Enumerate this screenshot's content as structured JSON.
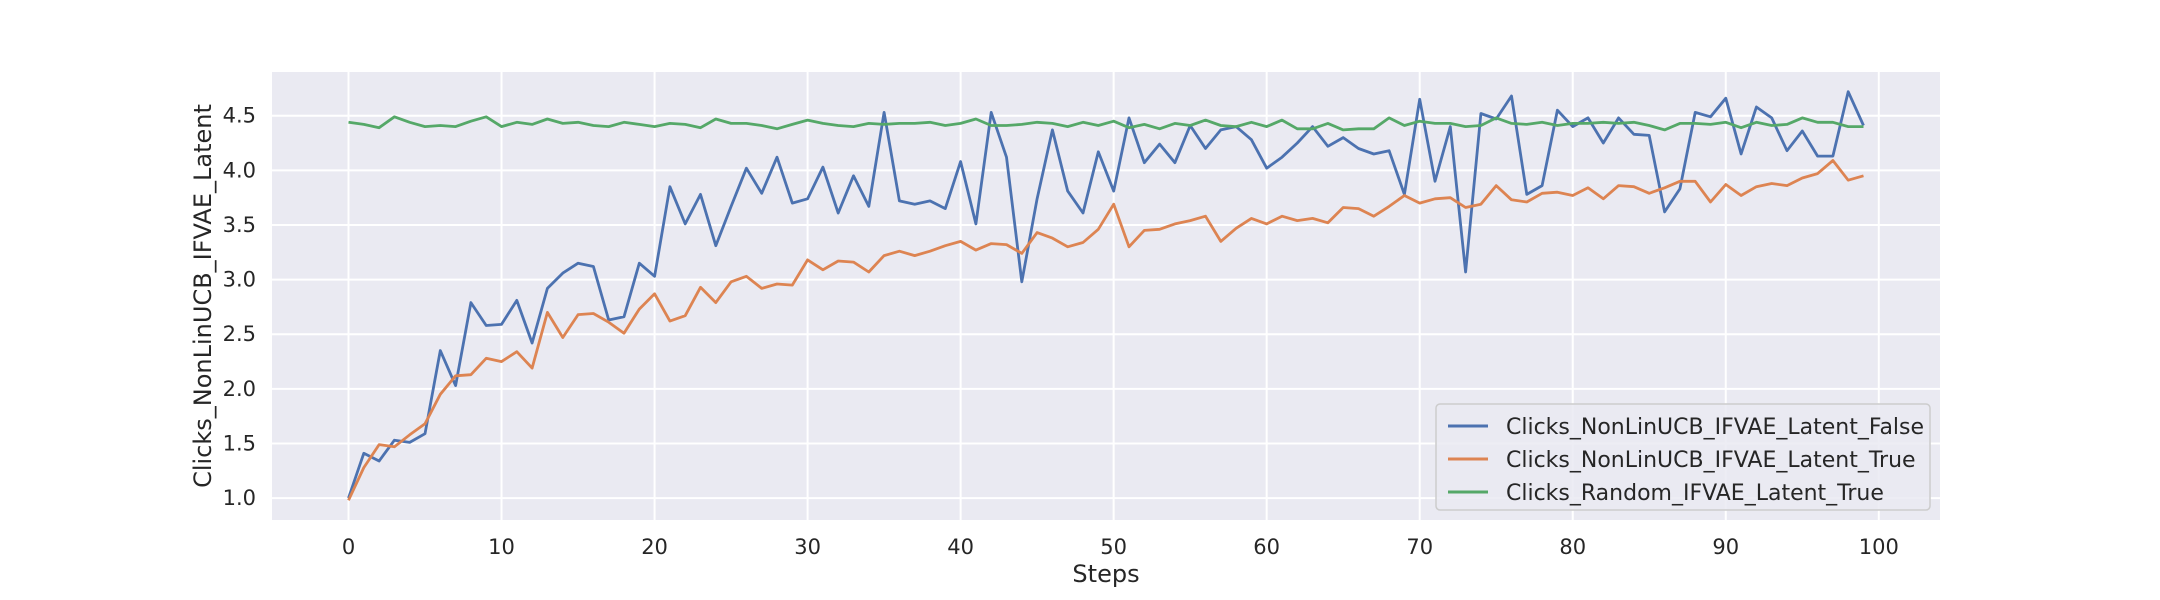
{
  "chart_data": {
    "type": "line",
    "title": "",
    "xlabel": "Steps",
    "ylabel": "Clicks_NonLinUCB_IFVAE_Latent",
    "xlim": [
      -5,
      104
    ],
    "ylim": [
      0.8,
      4.9
    ],
    "xticks": [
      0,
      10,
      20,
      30,
      40,
      50,
      60,
      70,
      80,
      90,
      100
    ],
    "yticks": [
      1.0,
      1.5,
      2.0,
      2.5,
      3.0,
      3.5,
      4.0,
      4.5
    ],
    "grid": true,
    "legend_position": "lower-right",
    "background_color": "#eaeaf2",
    "series": [
      {
        "name": "Clicks_NonLinUCB_IFVAE_Latent_False",
        "color": "#4c72b0",
        "values": [
          1.0,
          1.41,
          1.34,
          1.53,
          1.51,
          1.59,
          2.35,
          2.03,
          2.79,
          2.58,
          2.59,
          2.81,
          2.42,
          2.92,
          3.06,
          3.15,
          3.12,
          2.63,
          2.66,
          3.15,
          3.03,
          3.85,
          3.51,
          3.78,
          3.31,
          3.67,
          4.02,
          3.79,
          4.12,
          3.7,
          3.74,
          4.03,
          3.61,
          3.95,
          3.67,
          4.53,
          3.72,
          3.69,
          3.72,
          3.65,
          4.08,
          3.51,
          4.53,
          4.12,
          2.98,
          3.74,
          4.37,
          3.81,
          3.61,
          4.17,
          3.81,
          4.48,
          4.07,
          4.24,
          4.07,
          4.41,
          4.2,
          4.37,
          4.4,
          4.28,
          4.02,
          4.12,
          4.25,
          4.4,
          4.22,
          4.3,
          4.2,
          4.15,
          4.18,
          3.78,
          4.65,
          3.9,
          4.4,
          3.07,
          4.52,
          4.47,
          4.68,
          3.78,
          3.86,
          4.55,
          4.4,
          4.48,
          4.25,
          4.48,
          4.33,
          4.32,
          3.62,
          3.83,
          4.53,
          4.49,
          4.66,
          4.15,
          4.58,
          4.48,
          4.18,
          4.36,
          4.13,
          4.13,
          4.72,
          4.41
        ]
      },
      {
        "name": "Clicks_NonLinUCB_IFVAE_Latent_True",
        "color": "#dd8452",
        "values": [
          0.98,
          1.28,
          1.49,
          1.47,
          1.58,
          1.68,
          1.95,
          2.12,
          2.13,
          2.28,
          2.25,
          2.34,
          2.19,
          2.7,
          2.47,
          2.68,
          2.69,
          2.61,
          2.51,
          2.73,
          2.87,
          2.62,
          2.67,
          2.93,
          2.79,
          2.98,
          3.03,
          2.92,
          2.96,
          2.95,
          3.18,
          3.09,
          3.17,
          3.16,
          3.07,
          3.22,
          3.26,
          3.22,
          3.26,
          3.31,
          3.35,
          3.27,
          3.33,
          3.32,
          3.24,
          3.43,
          3.38,
          3.3,
          3.34,
          3.46,
          3.69,
          3.3,
          3.45,
          3.46,
          3.51,
          3.54,
          3.58,
          3.35,
          3.47,
          3.56,
          3.51,
          3.58,
          3.54,
          3.56,
          3.52,
          3.66,
          3.65,
          3.58,
          3.67,
          3.77,
          3.7,
          3.74,
          3.75,
          3.66,
          3.69,
          3.86,
          3.73,
          3.71,
          3.79,
          3.8,
          3.77,
          3.84,
          3.74,
          3.86,
          3.85,
          3.79,
          3.84,
          3.9,
          3.9,
          3.71,
          3.87,
          3.77,
          3.85,
          3.88,
          3.86,
          3.93,
          3.97,
          4.09,
          3.91,
          3.95
        ]
      },
      {
        "name": "Clicks_Random_IFVAE_Latent_True",
        "color": "#55a868",
        "values": [
          4.44,
          4.42,
          4.39,
          4.49,
          4.44,
          4.4,
          4.41,
          4.4,
          4.45,
          4.49,
          4.4,
          4.44,
          4.42,
          4.47,
          4.43,
          4.44,
          4.41,
          4.4,
          4.44,
          4.42,
          4.4,
          4.43,
          4.42,
          4.39,
          4.47,
          4.43,
          4.43,
          4.41,
          4.38,
          4.42,
          4.46,
          4.43,
          4.41,
          4.4,
          4.43,
          4.42,
          4.43,
          4.43,
          4.44,
          4.41,
          4.43,
          4.47,
          4.41,
          4.41,
          4.42,
          4.44,
          4.43,
          4.4,
          4.44,
          4.41,
          4.45,
          4.39,
          4.42,
          4.38,
          4.43,
          4.41,
          4.46,
          4.41,
          4.4,
          4.44,
          4.4,
          4.46,
          4.38,
          4.38,
          4.43,
          4.37,
          4.38,
          4.38,
          4.48,
          4.41,
          4.45,
          4.43,
          4.43,
          4.4,
          4.41,
          4.48,
          4.43,
          4.42,
          4.44,
          4.41,
          4.43,
          4.43,
          4.44,
          4.43,
          4.44,
          4.41,
          4.37,
          4.43,
          4.43,
          4.42,
          4.44,
          4.39,
          4.44,
          4.41,
          4.42,
          4.48,
          4.44,
          4.44,
          4.4,
          4.4
        ]
      }
    ]
  }
}
